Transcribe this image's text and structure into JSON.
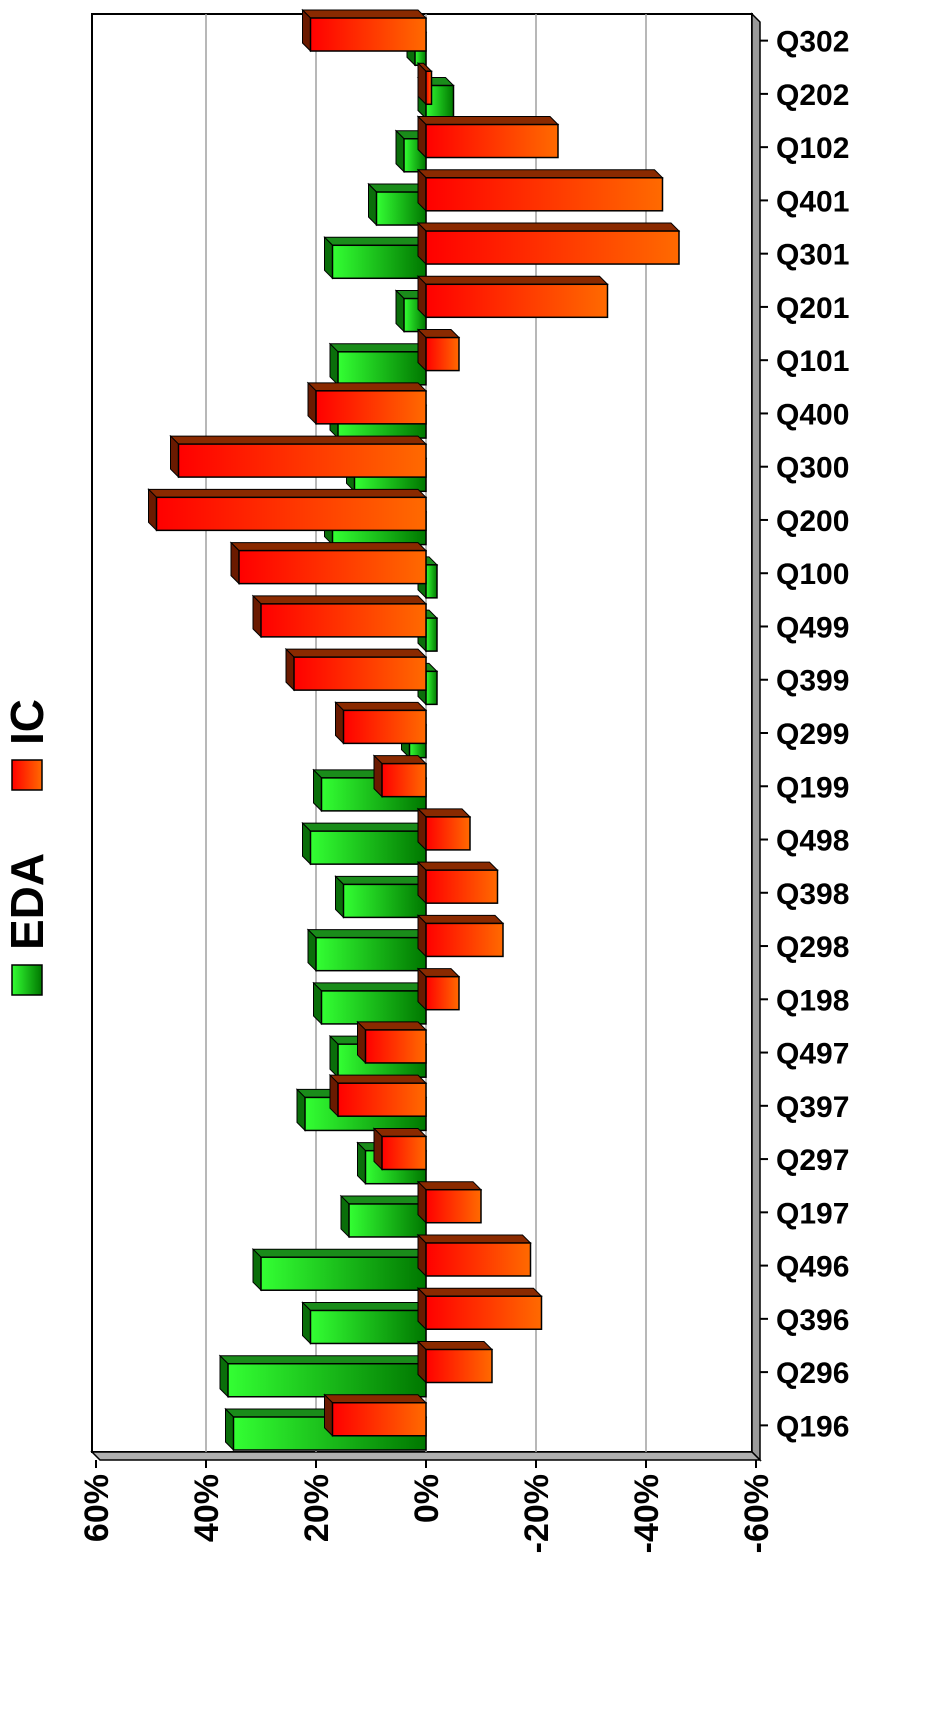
{
  "chart_data": {
    "type": "bar",
    "orientation": "horizontal",
    "categories": [
      "Q196",
      "Q296",
      "Q396",
      "Q496",
      "Q197",
      "Q297",
      "Q397",
      "Q497",
      "Q198",
      "Q298",
      "Q398",
      "Q498",
      "Q199",
      "Q299",
      "Q399",
      "Q499",
      "Q100",
      "Q200",
      "Q300",
      "Q400",
      "Q101",
      "Q201",
      "Q301",
      "Q401",
      "Q102",
      "Q202",
      "Q302"
    ],
    "series": [
      {
        "name": "EDA",
        "color": "#00cc00",
        "values": [
          35,
          36,
          21,
          30,
          14,
          11,
          22,
          16,
          19,
          20,
          15,
          21,
          19,
          3,
          -2,
          -2,
          -2,
          17,
          13,
          16,
          16,
          4,
          17,
          9,
          4,
          -5,
          2
        ]
      },
      {
        "name": "IC",
        "color": "#ff3300",
        "values": [
          17,
          -12,
          -21,
          -19,
          -10,
          8,
          16,
          11,
          -6,
          -14,
          -13,
          -8,
          8,
          15,
          24,
          30,
          34,
          49,
          45,
          20,
          -6,
          -33,
          -46,
          -43,
          -24,
          -1,
          21
        ]
      }
    ],
    "xticks": [
      "60%",
      "40%",
      "20%",
      "0%",
      "-20%",
      "-40%",
      "-60%"
    ],
    "xlim": [
      60,
      -60
    ],
    "grid": true,
    "legend": "left-middle"
  }
}
